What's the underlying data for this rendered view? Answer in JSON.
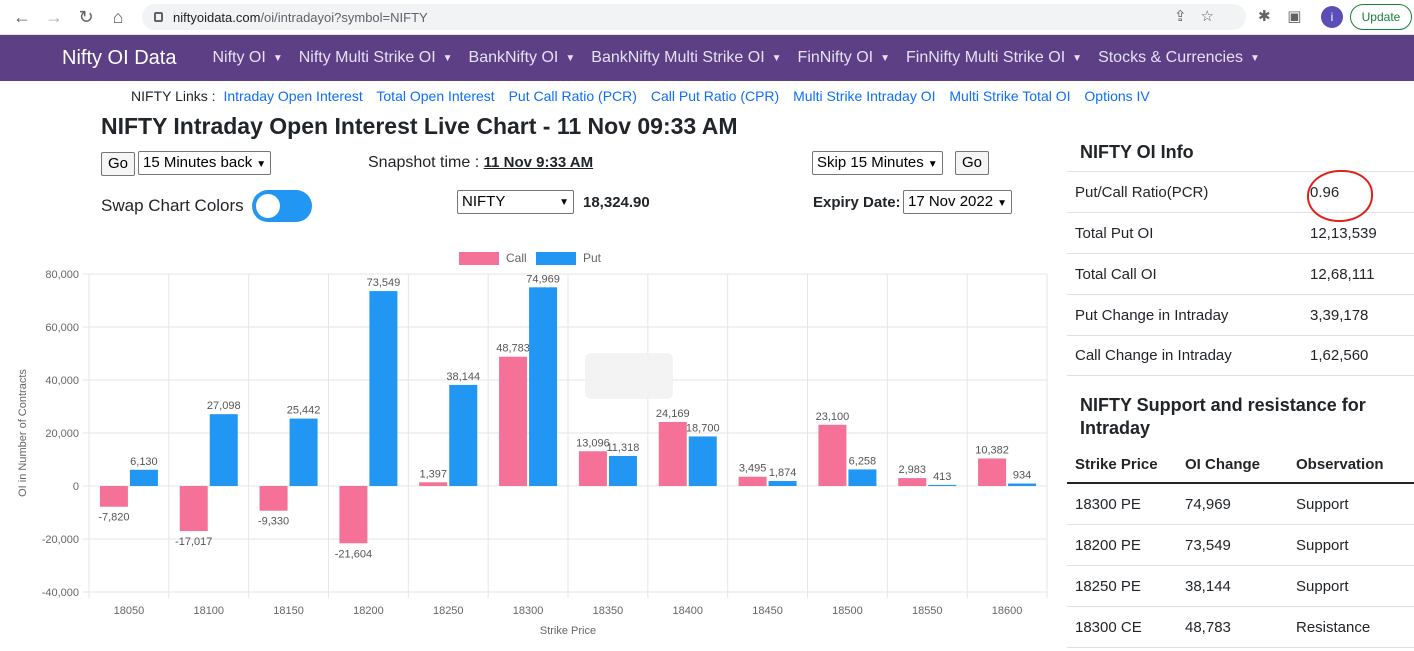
{
  "browser": {
    "url_host": "niftyoidata.com",
    "url_path": "/oi/intradayoi?symbol=NIFTY",
    "profile_initial": "i",
    "update_label": "Update"
  },
  "navbar": {
    "brand": "Nifty OI Data",
    "items": [
      {
        "label": "Nifty OI"
      },
      {
        "label": "Nifty Multi Strike OI"
      },
      {
        "label": "BankNifty OI"
      },
      {
        "label": "BankNifty Multi Strike OI"
      },
      {
        "label": "FinNifty OI"
      },
      {
        "label": "FinNifty Multi Strike OI"
      },
      {
        "label": "Stocks & Currencies"
      }
    ]
  },
  "links": {
    "label": "NIFTY Links :",
    "items": [
      "Intraday Open Interest",
      "Total Open Interest",
      "Put Call Ratio (PCR)",
      "Call Put Ratio (CPR)",
      "Multi Strike Intraday OI",
      "Multi Strike Total OI",
      "Options IV"
    ]
  },
  "title": "NIFTY Intraday Open Interest Live Chart - 11 Nov 09:33 AM",
  "controls": {
    "go_label": "Go",
    "back_select": "15 Minutes back",
    "snapshot_label": "Snapshot time :",
    "snapshot_value": "11 Nov 9:33 AM",
    "skip_select": "Skip 15 Minutes",
    "skip_go_label": "Go",
    "swap_label": "Swap Chart Colors",
    "symbol_select": "NIFTY",
    "spot_price": "18,324.90",
    "expiry_label": "Expiry Date:",
    "expiry_select": "17 Nov 2022"
  },
  "chart_data": {
    "type": "bar",
    "categories": [
      "18050",
      "18100",
      "18150",
      "18200",
      "18250",
      "18300",
      "18350",
      "18400",
      "18450",
      "18500",
      "18550",
      "18600"
    ],
    "series": [
      {
        "name": "Call",
        "color": "#f67198",
        "values": [
          -7820,
          -17017,
          -9330,
          -21604,
          1397,
          48783,
          13096,
          24169,
          3495,
          23100,
          2983,
          10382
        ]
      },
      {
        "name": "Put",
        "color": "#2196f3",
        "values": [
          6130,
          27098,
          25442,
          73549,
          38144,
          74969,
          11318,
          18700,
          1874,
          6258,
          413,
          934
        ]
      }
    ],
    "value_labels": {
      "Call": [
        "-7,820",
        "-17,017",
        "-9,330",
        "-21,604",
        "1,397",
        "48,783",
        "13,096",
        "24,169",
        "3,495",
        "23,100",
        "2,983",
        "10,382"
      ],
      "Put": [
        "6,130",
        "27,098",
        "25,442",
        "73,549",
        "38,144",
        "74,969",
        "11,318",
        "18,700",
        "1,874",
        "6,258",
        "413",
        "934"
      ]
    },
    "xlabel": "Strike Price",
    "ylabel": "OI in Number of Contracts",
    "ylim": [
      -40000,
      80000
    ],
    "yticks": [
      "80,000",
      "60,000",
      "40,000",
      "20,000",
      "0",
      "-20,000",
      "-40,000"
    ],
    "legend_position": "top"
  },
  "oi_info": {
    "title": "NIFTY OI Info",
    "rows": [
      {
        "key": "Put/Call Ratio(PCR)",
        "value": "0.96"
      },
      {
        "key": "Total Put OI",
        "value": "12,13,539"
      },
      {
        "key": "Total Call OI",
        "value": "12,68,111"
      },
      {
        "key": "Put Change in Intraday",
        "value": "3,39,178"
      },
      {
        "key": "Call Change in Intraday",
        "value": "1,62,560"
      }
    ]
  },
  "support_resistance": {
    "title": "NIFTY Support and resistance for Intraday",
    "headers": [
      "Strike Price",
      "OI Change",
      "Observation"
    ],
    "rows": [
      [
        "18300 PE",
        "74,969",
        "Support"
      ],
      [
        "18200 PE",
        "73,549",
        "Support"
      ],
      [
        "18250 PE",
        "38,144",
        "Support"
      ],
      [
        "18300 CE",
        "48,783",
        "Resistance"
      ]
    ]
  }
}
